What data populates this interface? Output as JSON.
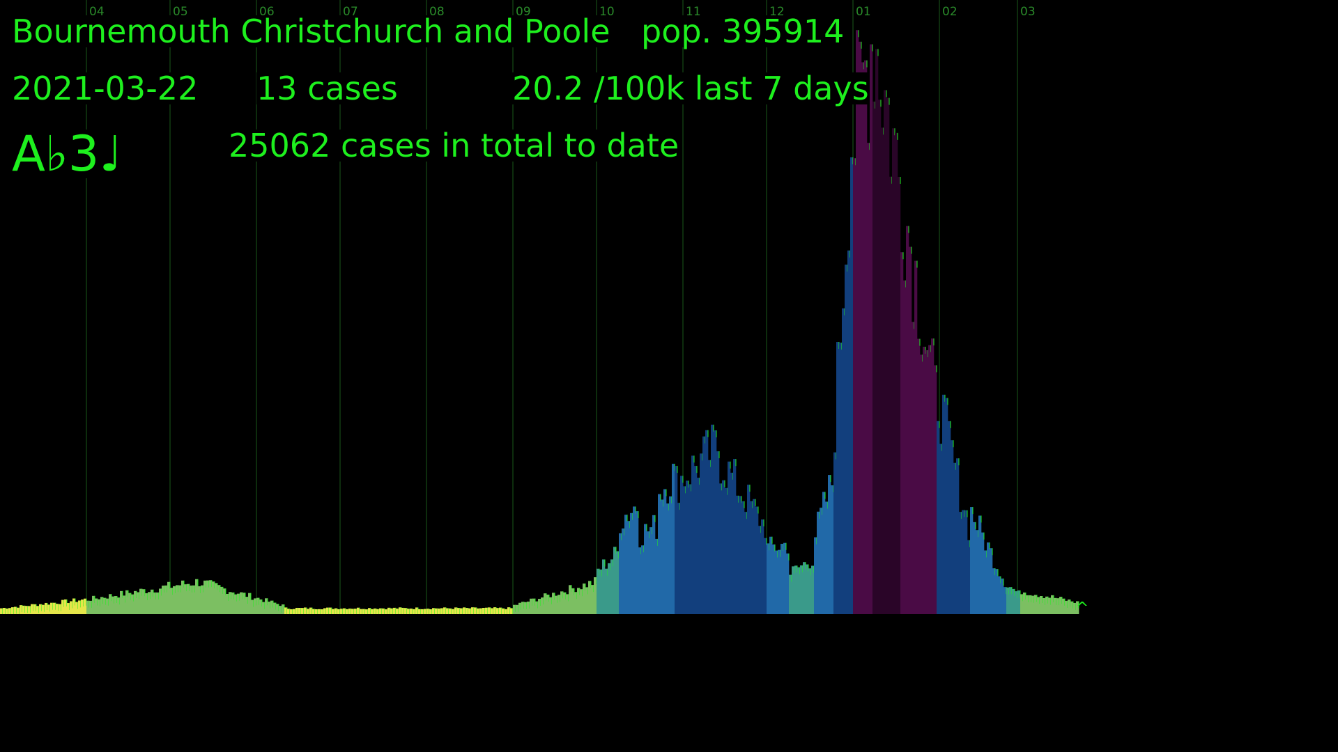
{
  "header": {
    "region": "Bournemouth Christchurch and Poole",
    "population": "pop. 395914",
    "date": "2021-03-22",
    "cases": "13 cases",
    "rate": "20.2 /100k last 7 days",
    "note": "A♭3♩",
    "total": "25062 cases in total to date"
  },
  "colors": {
    "text": "#1ef01e",
    "gridline": "#1a5a1a",
    "background": "#000000",
    "palette": [
      "#e6e64a",
      "#7cbf62",
      "#3a9a8a",
      "#2169a8",
      "#123f7d",
      "#4a0b45",
      "#2a0528"
    ]
  },
  "chart_data": {
    "type": "bar",
    "title": "",
    "xlabel": "",
    "ylabel": "",
    "month_ticks": [
      "04",
      "05",
      "06",
      "07",
      "08",
      "09",
      "10",
      "11",
      "12",
      "01",
      "02",
      "03"
    ],
    "x_start": "2020-03-01",
    "x_end": "2021-03-22",
    "ylim": [
      0,
      420
    ],
    "cursor_marker": "^",
    "segments": [
      {
        "start": "2020-03-01",
        "end": "2020-03-31",
        "v0": 4,
        "v1": 10,
        "color": "#e6e64a"
      },
      {
        "start": "2020-04-01",
        "end": "2020-05-10",
        "v0": 10,
        "v1": 22,
        "color": "#7cbf62"
      },
      {
        "start": "2020-05-11",
        "end": "2020-06-10",
        "v0": 22,
        "v1": 6,
        "color": "#7cbf62"
      },
      {
        "start": "2020-06-11",
        "end": "2020-08-31",
        "v0": 4,
        "v1": 4,
        "color": "#e6e64a"
      },
      {
        "start": "2020-09-01",
        "end": "2020-09-30",
        "v0": 6,
        "v1": 22,
        "color": "#7cbf62"
      },
      {
        "start": "2020-10-01",
        "end": "2020-10-08",
        "v0": 30,
        "v1": 42,
        "color": "#3a9a8a"
      },
      {
        "start": "2020-10-09",
        "end": "2020-10-15",
        "v0": 65,
        "v1": 75,
        "color": "#2169a8"
      },
      {
        "start": "2020-10-16",
        "end": "2020-10-22",
        "v0": 55,
        "v1": 60,
        "color": "#2169a8"
      },
      {
        "start": "2020-10-23",
        "end": "2020-10-28",
        "v0": 85,
        "v1": 95,
        "color": "#2169a8"
      },
      {
        "start": "2020-10-29",
        "end": "2020-11-13",
        "v0": 90,
        "v1": 115,
        "color": "#123f7d"
      },
      {
        "start": "2020-11-14",
        "end": "2020-11-30",
        "v0": 105,
        "v1": 60,
        "color": "#123f7d"
      },
      {
        "start": "2020-12-01",
        "end": "2020-12-08",
        "v0": 45,
        "v1": 48,
        "color": "#2169a8"
      },
      {
        "start": "2020-12-09",
        "end": "2020-12-17",
        "v0": 28,
        "v1": 38,
        "color": "#3a9a8a"
      },
      {
        "start": "2020-12-18",
        "end": "2020-12-24",
        "v0": 55,
        "v1": 90,
        "color": "#2169a8"
      },
      {
        "start": "2020-12-25",
        "end": "2020-12-31",
        "v0": 130,
        "v1": 330,
        "color": "#123f7d"
      },
      {
        "start": "2021-01-01",
        "end": "2021-01-07",
        "v0": 330,
        "v1": 395,
        "color": "#4a0b45"
      },
      {
        "start": "2021-01-08",
        "end": "2021-01-17",
        "v0": 400,
        "v1": 300,
        "color": "#2a0528"
      },
      {
        "start": "2021-01-18",
        "end": "2021-01-30",
        "v0": 290,
        "v1": 150,
        "color": "#4a0b45"
      },
      {
        "start": "2021-01-31",
        "end": "2021-02-11",
        "v0": 150,
        "v1": 60,
        "color": "#123f7d"
      },
      {
        "start": "2021-02-12",
        "end": "2021-02-24",
        "v0": 70,
        "v1": 22,
        "color": "#2169a8"
      },
      {
        "start": "2021-02-25",
        "end": "2021-03-01",
        "v0": 20,
        "v1": 14,
        "color": "#3a9a8a"
      },
      {
        "start": "2021-03-02",
        "end": "2021-03-22",
        "v0": 16,
        "v1": 8,
        "color": "#7cbf62"
      }
    ]
  }
}
